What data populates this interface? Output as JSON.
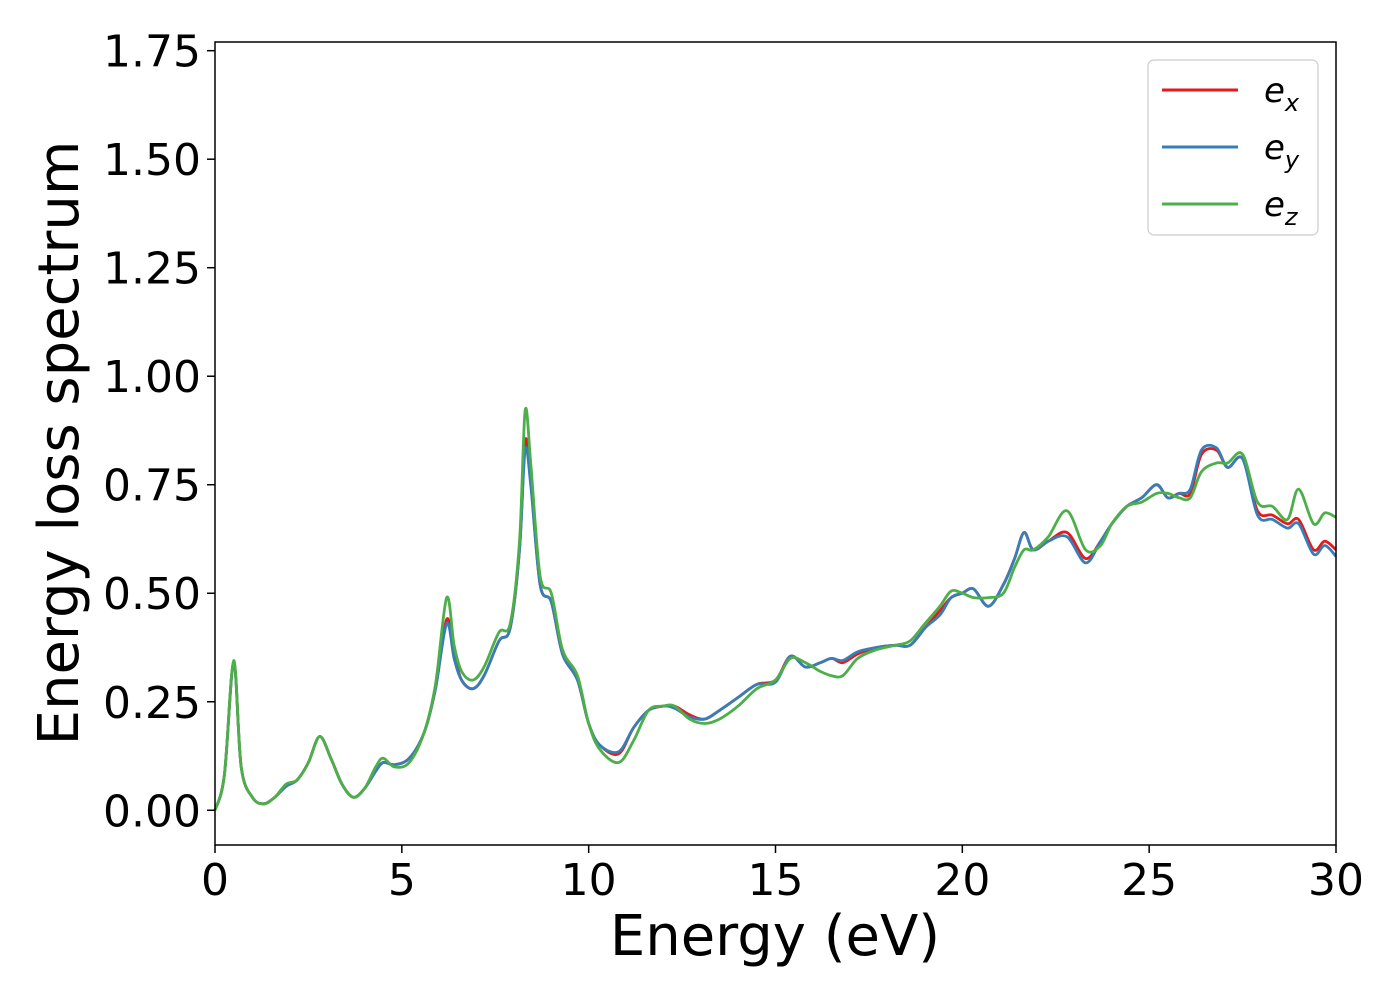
{
  "chart_data": {
    "type": "line",
    "xlabel": "Energy (eV)",
    "ylabel": "Energy loss spectrum",
    "xlim": [
      0,
      30
    ],
    "ylim": [
      -0.08,
      1.77
    ],
    "xticks": [
      "0",
      "5",
      "10",
      "15",
      "20",
      "25",
      "30"
    ],
    "yticks": [
      "0.00",
      "0.25",
      "0.50",
      "0.75",
      "1.00",
      "1.25",
      "1.50",
      "1.75"
    ],
    "grid": false,
    "legend_position": "top-right",
    "series": [
      {
        "name": "e",
        "sub": "x",
        "color": "#e41a1c",
        "points": [
          [
            0,
            0
          ],
          [
            0.25,
            0.08
          ],
          [
            0.5,
            0.34
          ],
          [
            0.7,
            0.1
          ],
          [
            1.0,
            0.03
          ],
          [
            1.3,
            0.015
          ],
          [
            1.6,
            0.03
          ],
          [
            1.9,
            0.055
          ],
          [
            2.2,
            0.07
          ],
          [
            2.5,
            0.11
          ],
          [
            2.8,
            0.17
          ],
          [
            3.1,
            0.12
          ],
          [
            3.4,
            0.06
          ],
          [
            3.7,
            0.03
          ],
          [
            4.0,
            0.05
          ],
          [
            4.3,
            0.09
          ],
          [
            4.5,
            0.11
          ],
          [
            4.8,
            0.105
          ],
          [
            5.2,
            0.12
          ],
          [
            5.6,
            0.18
          ],
          [
            5.9,
            0.28
          ],
          [
            6.2,
            0.44
          ],
          [
            6.4,
            0.36
          ],
          [
            6.6,
            0.3
          ],
          [
            6.9,
            0.28
          ],
          [
            7.2,
            0.31
          ],
          [
            7.6,
            0.39
          ],
          [
            7.9,
            0.42
          ],
          [
            8.15,
            0.6
          ],
          [
            8.3,
            0.85
          ],
          [
            8.45,
            0.76
          ],
          [
            8.7,
            0.52
          ],
          [
            9.0,
            0.48
          ],
          [
            9.3,
            0.36
          ],
          [
            9.7,
            0.3
          ],
          [
            10.0,
            0.2
          ],
          [
            10.3,
            0.15
          ],
          [
            10.8,
            0.13
          ],
          [
            11.2,
            0.19
          ],
          [
            11.6,
            0.23
          ],
          [
            12.0,
            0.24
          ],
          [
            12.3,
            0.24
          ],
          [
            12.7,
            0.22
          ],
          [
            13.1,
            0.21
          ],
          [
            13.5,
            0.23
          ],
          [
            14.0,
            0.26
          ],
          [
            14.5,
            0.29
          ],
          [
            15.0,
            0.3
          ],
          [
            15.4,
            0.355
          ],
          [
            15.8,
            0.33
          ],
          [
            16.2,
            0.34
          ],
          [
            16.5,
            0.35
          ],
          [
            16.8,
            0.34
          ],
          [
            17.2,
            0.36
          ],
          [
            17.7,
            0.375
          ],
          [
            18.2,
            0.38
          ],
          [
            18.6,
            0.38
          ],
          [
            19.0,
            0.42
          ],
          [
            19.4,
            0.46
          ],
          [
            19.7,
            0.49
          ],
          [
            20.0,
            0.5
          ],
          [
            20.3,
            0.51
          ],
          [
            20.7,
            0.47
          ],
          [
            21.1,
            0.52
          ],
          [
            21.4,
            0.58
          ],
          [
            21.65,
            0.64
          ],
          [
            21.9,
            0.6
          ],
          [
            22.3,
            0.62
          ],
          [
            22.8,
            0.64
          ],
          [
            23.3,
            0.58
          ],
          [
            23.7,
            0.62
          ],
          [
            24.0,
            0.66
          ],
          [
            24.4,
            0.7
          ],
          [
            24.8,
            0.72
          ],
          [
            25.2,
            0.75
          ],
          [
            25.5,
            0.72
          ],
          [
            25.8,
            0.73
          ],
          [
            26.1,
            0.73
          ],
          [
            26.4,
            0.82
          ],
          [
            26.8,
            0.83
          ],
          [
            27.1,
            0.79
          ],
          [
            27.5,
            0.81
          ],
          [
            27.9,
            0.69
          ],
          [
            28.3,
            0.68
          ],
          [
            28.7,
            0.66
          ],
          [
            29.0,
            0.67
          ],
          [
            29.4,
            0.6
          ],
          [
            29.7,
            0.62
          ],
          [
            30,
            0.6
          ]
        ]
      },
      {
        "name": "e",
        "sub": "y",
        "color": "#377eb8",
        "points": [
          [
            0,
            0
          ],
          [
            0.25,
            0.08
          ],
          [
            0.5,
            0.34
          ],
          [
            0.7,
            0.1
          ],
          [
            1.0,
            0.03
          ],
          [
            1.3,
            0.015
          ],
          [
            1.6,
            0.03
          ],
          [
            1.9,
            0.055
          ],
          [
            2.2,
            0.07
          ],
          [
            2.5,
            0.11
          ],
          [
            2.8,
            0.17
          ],
          [
            3.1,
            0.12
          ],
          [
            3.4,
            0.06
          ],
          [
            3.7,
            0.03
          ],
          [
            4.0,
            0.05
          ],
          [
            4.3,
            0.09
          ],
          [
            4.5,
            0.11
          ],
          [
            4.8,
            0.105
          ],
          [
            5.2,
            0.12
          ],
          [
            5.6,
            0.18
          ],
          [
            5.9,
            0.28
          ],
          [
            6.2,
            0.43
          ],
          [
            6.4,
            0.35
          ],
          [
            6.6,
            0.3
          ],
          [
            6.9,
            0.28
          ],
          [
            7.2,
            0.31
          ],
          [
            7.6,
            0.39
          ],
          [
            7.9,
            0.42
          ],
          [
            8.15,
            0.6
          ],
          [
            8.3,
            0.83
          ],
          [
            8.45,
            0.75
          ],
          [
            8.7,
            0.52
          ],
          [
            9.0,
            0.48
          ],
          [
            9.3,
            0.36
          ],
          [
            9.7,
            0.3
          ],
          [
            10.0,
            0.2
          ],
          [
            10.3,
            0.15
          ],
          [
            10.8,
            0.135
          ],
          [
            11.2,
            0.19
          ],
          [
            11.6,
            0.23
          ],
          [
            12.0,
            0.24
          ],
          [
            12.3,
            0.235
          ],
          [
            12.7,
            0.215
          ],
          [
            13.1,
            0.21
          ],
          [
            13.5,
            0.23
          ],
          [
            14.0,
            0.26
          ],
          [
            14.5,
            0.29
          ],
          [
            15.0,
            0.295
          ],
          [
            15.4,
            0.355
          ],
          [
            15.8,
            0.33
          ],
          [
            16.2,
            0.34
          ],
          [
            16.5,
            0.35
          ],
          [
            16.8,
            0.345
          ],
          [
            17.2,
            0.365
          ],
          [
            17.7,
            0.375
          ],
          [
            18.2,
            0.38
          ],
          [
            18.6,
            0.38
          ],
          [
            19.0,
            0.42
          ],
          [
            19.4,
            0.45
          ],
          [
            19.7,
            0.49
          ],
          [
            20.0,
            0.5
          ],
          [
            20.3,
            0.51
          ],
          [
            20.7,
            0.47
          ],
          [
            21.1,
            0.52
          ],
          [
            21.4,
            0.58
          ],
          [
            21.65,
            0.64
          ],
          [
            21.9,
            0.6
          ],
          [
            22.3,
            0.62
          ],
          [
            22.8,
            0.63
          ],
          [
            23.3,
            0.57
          ],
          [
            23.7,
            0.62
          ],
          [
            24.0,
            0.66
          ],
          [
            24.4,
            0.7
          ],
          [
            24.8,
            0.72
          ],
          [
            25.2,
            0.75
          ],
          [
            25.5,
            0.72
          ],
          [
            25.8,
            0.73
          ],
          [
            26.1,
            0.74
          ],
          [
            26.4,
            0.83
          ],
          [
            26.8,
            0.835
          ],
          [
            27.1,
            0.79
          ],
          [
            27.5,
            0.81
          ],
          [
            27.9,
            0.68
          ],
          [
            28.3,
            0.67
          ],
          [
            28.7,
            0.65
          ],
          [
            29.0,
            0.66
          ],
          [
            29.4,
            0.59
          ],
          [
            29.7,
            0.61
          ],
          [
            30,
            0.585
          ]
        ]
      },
      {
        "name": "e",
        "sub": "z",
        "color": "#4daf4a",
        "points": [
          [
            0,
            0
          ],
          [
            0.25,
            0.08
          ],
          [
            0.5,
            0.345
          ],
          [
            0.7,
            0.1
          ],
          [
            1.0,
            0.03
          ],
          [
            1.3,
            0.015
          ],
          [
            1.6,
            0.03
          ],
          [
            1.9,
            0.06
          ],
          [
            2.2,
            0.07
          ],
          [
            2.5,
            0.11
          ],
          [
            2.8,
            0.17
          ],
          [
            3.1,
            0.12
          ],
          [
            3.4,
            0.06
          ],
          [
            3.7,
            0.03
          ],
          [
            4.0,
            0.05
          ],
          [
            4.3,
            0.1
          ],
          [
            4.5,
            0.12
          ],
          [
            4.8,
            0.1
          ],
          [
            5.2,
            0.11
          ],
          [
            5.6,
            0.18
          ],
          [
            5.9,
            0.29
          ],
          [
            6.2,
            0.49
          ],
          [
            6.4,
            0.38
          ],
          [
            6.6,
            0.32
          ],
          [
            6.9,
            0.3
          ],
          [
            7.2,
            0.33
          ],
          [
            7.6,
            0.41
          ],
          [
            7.9,
            0.43
          ],
          [
            8.15,
            0.62
          ],
          [
            8.3,
            0.92
          ],
          [
            8.45,
            0.8
          ],
          [
            8.7,
            0.54
          ],
          [
            9.0,
            0.5
          ],
          [
            9.3,
            0.37
          ],
          [
            9.7,
            0.31
          ],
          [
            10.0,
            0.2
          ],
          [
            10.3,
            0.14
          ],
          [
            10.8,
            0.11
          ],
          [
            11.2,
            0.16
          ],
          [
            11.6,
            0.23
          ],
          [
            12.0,
            0.24
          ],
          [
            12.3,
            0.24
          ],
          [
            12.7,
            0.21
          ],
          [
            13.1,
            0.2
          ],
          [
            13.5,
            0.21
          ],
          [
            14.0,
            0.24
          ],
          [
            14.5,
            0.28
          ],
          [
            15.0,
            0.3
          ],
          [
            15.4,
            0.35
          ],
          [
            15.8,
            0.34
          ],
          [
            16.2,
            0.32
          ],
          [
            16.5,
            0.31
          ],
          [
            16.8,
            0.31
          ],
          [
            17.2,
            0.35
          ],
          [
            17.7,
            0.37
          ],
          [
            18.2,
            0.38
          ],
          [
            18.6,
            0.39
          ],
          [
            19.0,
            0.43
          ],
          [
            19.4,
            0.47
          ],
          [
            19.7,
            0.505
          ],
          [
            20.0,
            0.5
          ],
          [
            20.3,
            0.49
          ],
          [
            20.7,
            0.49
          ],
          [
            21.1,
            0.5
          ],
          [
            21.4,
            0.56
          ],
          [
            21.65,
            0.6
          ],
          [
            21.9,
            0.6
          ],
          [
            22.3,
            0.63
          ],
          [
            22.8,
            0.69
          ],
          [
            23.3,
            0.6
          ],
          [
            23.7,
            0.61
          ],
          [
            24.0,
            0.66
          ],
          [
            24.4,
            0.7
          ],
          [
            24.8,
            0.71
          ],
          [
            25.2,
            0.73
          ],
          [
            25.5,
            0.73
          ],
          [
            25.8,
            0.72
          ],
          [
            26.1,
            0.72
          ],
          [
            26.4,
            0.78
          ],
          [
            26.8,
            0.8
          ],
          [
            27.1,
            0.8
          ],
          [
            27.5,
            0.82
          ],
          [
            27.9,
            0.71
          ],
          [
            28.3,
            0.7
          ],
          [
            28.7,
            0.67
          ],
          [
            29.0,
            0.74
          ],
          [
            29.4,
            0.66
          ],
          [
            29.7,
            0.685
          ],
          [
            30,
            0.675
          ]
        ]
      }
    ]
  }
}
